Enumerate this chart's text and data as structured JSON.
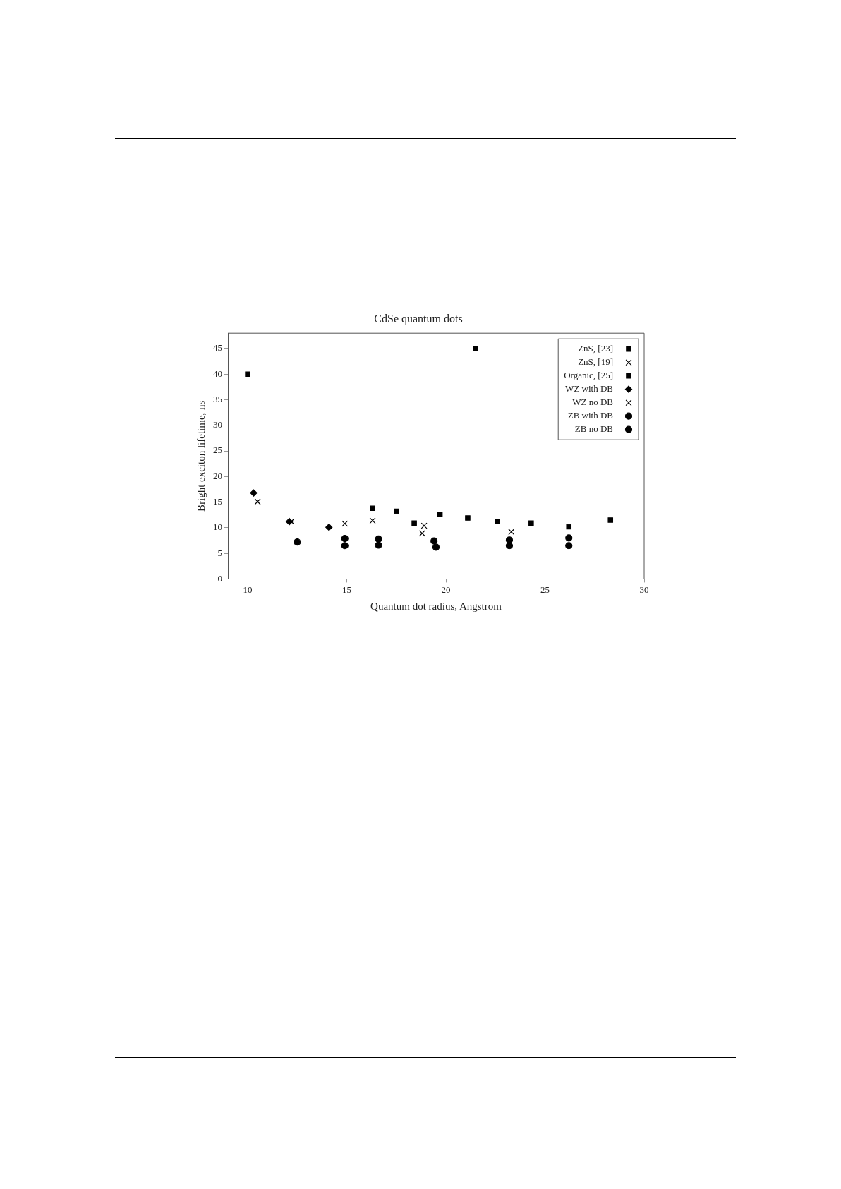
{
  "chart_data": {
    "type": "scatter",
    "title": "CdSe quantum dots",
    "xlabel": "Quantum dot radius, Angstrom",
    "ylabel": "Bright exciton lifetime, ns",
    "xlim": [
      9,
      30
    ],
    "xticks": [
      10,
      15,
      20,
      25,
      30
    ],
    "ylim": [
      0,
      48
    ],
    "yticks": [
      0,
      5,
      10,
      15,
      20,
      25,
      30,
      35,
      40,
      45
    ],
    "grid": false,
    "legend": "top right",
    "series": [
      {
        "name": "ZnS, [23]",
        "color": "#000000",
        "marker": "square",
        "x": [
          16.3,
          17.5,
          18.4,
          19.7,
          21.1,
          22.6,
          24.3,
          26.2,
          28.3
        ],
        "values": [
          13.8,
          13.2,
          10.9,
          12.6,
          11.9,
          11.2,
          10.9,
          10.2,
          11.5
        ]
      },
      {
        "name": "ZnS, [19]",
        "color": "#000000",
        "marker": "cross",
        "x": [
          10.5,
          14.9,
          18.8
        ],
        "values": [
          15.1,
          10.8,
          8.9
        ]
      },
      {
        "name": "Organic, [25]",
        "color": "#000000",
        "marker": "square",
        "x": [
          10.0,
          21.5
        ],
        "values": [
          40.0,
          45.0
        ]
      },
      {
        "name": "WZ with DB",
        "color": "#000000",
        "marker": "diamond",
        "x": [
          10.3,
          12.1,
          14.1
        ],
        "values": [
          16.8,
          11.2,
          10.1
        ]
      },
      {
        "name": "WZ no DB",
        "color": "#000000",
        "marker": "cross",
        "x": [
          12.2,
          16.3,
          18.9,
          23.3
        ],
        "values": [
          11.2,
          11.4,
          10.4,
          9.2
        ]
      },
      {
        "name": "ZB with DB",
        "color": "#000000",
        "marker": "circle",
        "x": [
          14.9,
          16.6,
          19.4,
          23.2,
          26.2
        ],
        "values": [
          7.9,
          7.8,
          7.4,
          7.6,
          8.0
        ]
      },
      {
        "name": "ZB no DB",
        "color": "#000000",
        "marker": "circle",
        "x": [
          12.5,
          14.9,
          16.6,
          19.5,
          23.2,
          26.2
        ],
        "values": [
          7.2,
          6.5,
          6.6,
          6.2,
          6.5,
          6.5
        ]
      }
    ]
  }
}
